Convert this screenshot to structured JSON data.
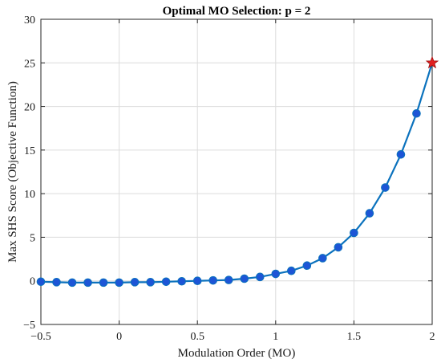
{
  "chart_data": {
    "type": "line",
    "title": "Optimal MO Selection: p = 2",
    "xlabel": "Modulation Order (MO)",
    "ylabel": "Max SHS Score (Objective Function)",
    "xlim": [
      -0.5,
      2
    ],
    "ylim": [
      -5,
      30
    ],
    "xticks": [
      -0.5,
      0,
      0.5,
      1,
      1.5,
      2
    ],
    "xtick_labels": [
      "−0.5",
      "0",
      "0.5",
      "1",
      "1.5",
      "2"
    ],
    "yticks": [
      -5,
      0,
      5,
      10,
      15,
      20,
      25,
      30
    ],
    "ytick_labels": [
      "−5",
      "0",
      "5",
      "10",
      "15",
      "20",
      "25",
      "30"
    ],
    "grid": true,
    "series": [
      {
        "line_color": "#0b72bd",
        "marker_color": "#1d55d6",
        "x": [
          -0.5,
          -0.4,
          -0.3,
          -0.2,
          -0.1,
          0,
          0.1,
          0.2,
          0.3,
          0.4,
          0.5,
          0.6,
          0.7,
          0.8,
          0.9,
          1.0,
          1.1,
          1.2,
          1.3,
          1.4,
          1.5,
          1.6,
          1.7,
          1.8,
          1.9,
          2.0
        ],
        "y": [
          -0.1,
          -0.15,
          -0.2,
          -0.2,
          -0.2,
          -0.2,
          -0.15,
          -0.15,
          -0.1,
          -0.05,
          0.0,
          0.05,
          0.1,
          0.25,
          0.45,
          0.8,
          1.15,
          1.75,
          2.6,
          3.85,
          5.5,
          7.75,
          10.7,
          14.5,
          19.2,
          25.0
        ]
      }
    ],
    "optimum": {
      "x": 2.0,
      "y": 25.0,
      "marker": "star",
      "color": "#e02020"
    }
  }
}
